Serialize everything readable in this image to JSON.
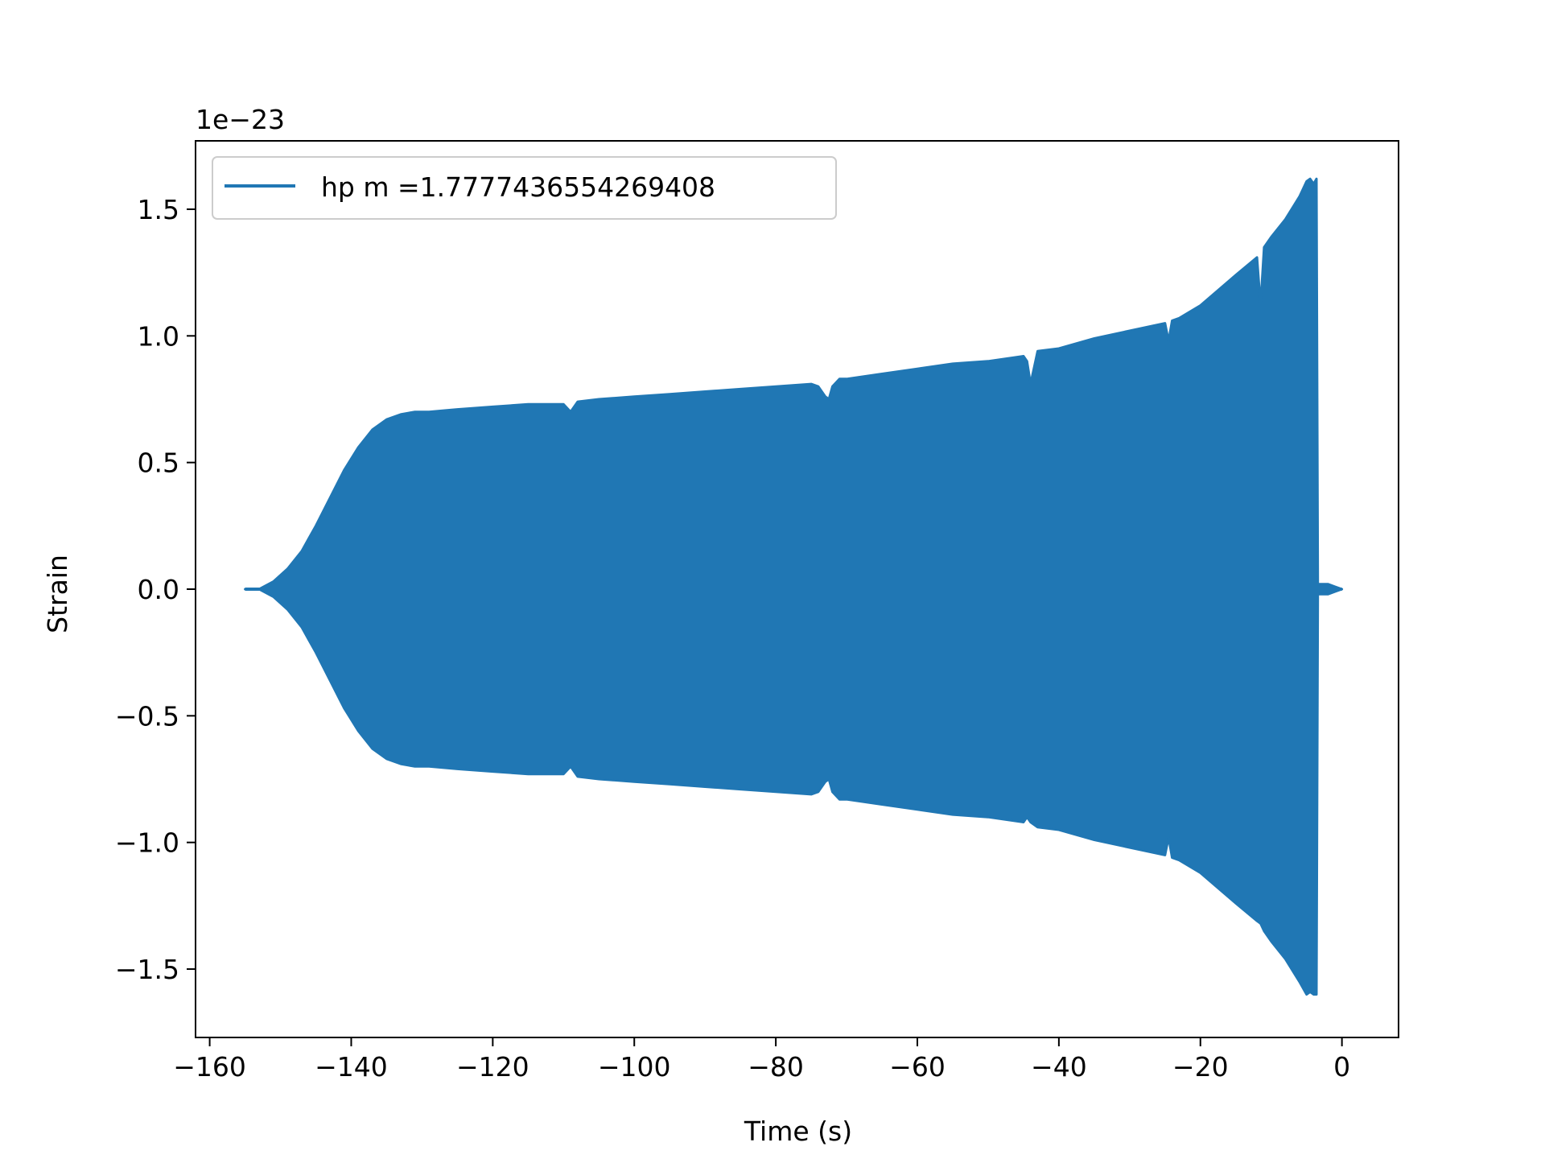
{
  "chart_data": {
    "type": "line",
    "title": "",
    "xlabel": "Time (s)",
    "ylabel": "Strain",
    "y_offset_label": "1e−23",
    "xlim": [
      -162,
      8
    ],
    "ylim": [
      -1.77,
      1.77
    ],
    "x_ticks": [
      -160,
      -140,
      -120,
      -100,
      -80,
      -60,
      -40,
      -20,
      0
    ],
    "x_tick_labels": [
      "−160",
      "−140",
      "−120",
      "−100",
      "−80",
      "−60",
      "−40",
      "−20",
      "0"
    ],
    "y_ticks": [
      -1.5,
      -1.0,
      -0.5,
      0.0,
      0.5,
      1.0,
      1.5
    ],
    "y_tick_labels": [
      "−1.5",
      "−1.0",
      "−0.5",
      "0.0",
      "0.5",
      "1.0",
      "1.5"
    ],
    "grid": false,
    "legend_position": "top-left",
    "series": [
      {
        "name": "hp m =1.7777436554269408",
        "color": "#2077b4",
        "envelope": {
          "t": [
            -155,
            -153,
            -151,
            -149,
            -147,
            -145,
            -143,
            -141,
            -139,
            -137,
            -135,
            -133,
            -131,
            -129,
            -125,
            -120,
            -115,
            -110,
            -109,
            -108,
            -105,
            -100,
            -95,
            -90,
            -85,
            -80,
            -75,
            -74,
            -73,
            -72.5,
            -72,
            -71,
            -70,
            -65,
            -60,
            -55,
            -50,
            -45,
            -44.5,
            -44,
            -43,
            -40,
            -35,
            -30,
            -25,
            -24.5,
            -24,
            -23,
            -20,
            -15,
            -12,
            -11.5,
            -11,
            -10,
            -8,
            -6,
            -5,
            -4.5,
            -4,
            -3.6,
            -3.4,
            -3,
            -2,
            -1,
            0
          ],
          "upper": [
            0.0,
            0.0,
            0.03,
            0.08,
            0.15,
            0.25,
            0.36,
            0.47,
            0.56,
            0.63,
            0.67,
            0.69,
            0.7,
            0.7,
            0.71,
            0.72,
            0.73,
            0.73,
            0.7,
            0.74,
            0.75,
            0.76,
            0.77,
            0.78,
            0.79,
            0.8,
            0.81,
            0.8,
            0.76,
            0.75,
            0.8,
            0.83,
            0.83,
            0.85,
            0.87,
            0.89,
            0.9,
            0.92,
            0.9,
            0.81,
            0.94,
            0.95,
            0.99,
            1.02,
            1.05,
            0.98,
            1.06,
            1.07,
            1.12,
            1.24,
            1.31,
            1.12,
            1.35,
            1.39,
            1.46,
            1.55,
            1.61,
            1.62,
            1.6,
            1.62,
            0.02,
            0.02,
            0.02,
            0.01,
            0.0
          ],
          "lower": [
            0.0,
            0.0,
            -0.03,
            -0.08,
            -0.15,
            -0.25,
            -0.36,
            -0.47,
            -0.56,
            -0.63,
            -0.67,
            -0.69,
            -0.7,
            -0.7,
            -0.71,
            -0.72,
            -0.73,
            -0.73,
            -0.7,
            -0.74,
            -0.75,
            -0.76,
            -0.77,
            -0.78,
            -0.79,
            -0.8,
            -0.81,
            -0.8,
            -0.76,
            -0.75,
            -0.8,
            -0.83,
            -0.83,
            -0.85,
            -0.87,
            -0.89,
            -0.9,
            -0.92,
            -0.9,
            -0.92,
            -0.94,
            -0.95,
            -0.99,
            -1.02,
            -1.05,
            -0.98,
            -1.06,
            -1.07,
            -1.12,
            -1.24,
            -1.31,
            -1.32,
            -1.35,
            -1.39,
            -1.46,
            -1.55,
            -1.6,
            -1.59,
            -1.6,
            -1.6,
            -0.02,
            -0.02,
            -0.02,
            -0.01,
            0.0
          ]
        }
      }
    ]
  }
}
